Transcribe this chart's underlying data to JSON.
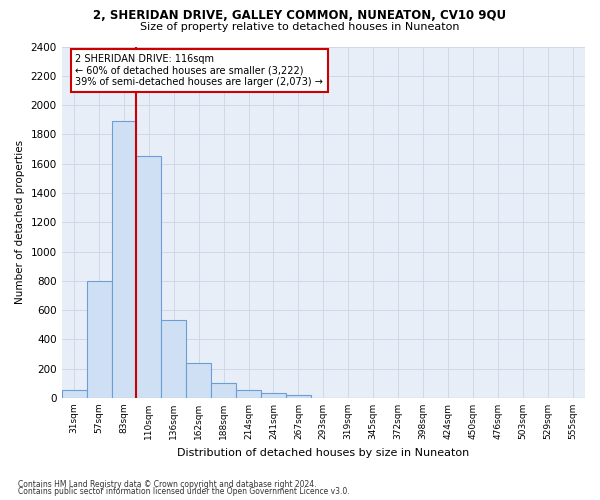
{
  "title_line1": "2, SHERIDAN DRIVE, GALLEY COMMON, NUNEATON, CV10 9QU",
  "title_line2": "Size of property relative to detached houses in Nuneaton",
  "xlabel": "Distribution of detached houses by size in Nuneaton",
  "ylabel": "Number of detached properties",
  "bar_labels": [
    "31sqm",
    "57sqm",
    "83sqm",
    "110sqm",
    "136sqm",
    "162sqm",
    "188sqm",
    "214sqm",
    "241sqm",
    "267sqm",
    "293sqm",
    "319sqm",
    "345sqm",
    "372sqm",
    "398sqm",
    "424sqm",
    "450sqm",
    "476sqm",
    "503sqm",
    "529sqm",
    "555sqm"
  ],
  "bar_values": [
    55,
    800,
    1890,
    1650,
    535,
    240,
    105,
    55,
    35,
    20,
    0,
    0,
    0,
    0,
    0,
    0,
    0,
    0,
    0,
    0,
    0
  ],
  "bar_color": "#cfe0f5",
  "bar_edge_color": "#6b9fd4",
  "vline_index": 3,
  "vline_color": "#cc0000",
  "ylim": [
    0,
    2400
  ],
  "yticks": [
    0,
    200,
    400,
    600,
    800,
    1000,
    1200,
    1400,
    1600,
    1800,
    2000,
    2200,
    2400
  ],
  "annotation_title": "2 SHERIDAN DRIVE: 116sqm",
  "annotation_line1": "← 60% of detached houses are smaller (3,222)",
  "annotation_line2": "39% of semi-detached houses are larger (2,073) →",
  "annotation_box_color": "#cc0000",
  "background_color": "#e8eef8",
  "grid_color": "#d0d8e8",
  "footnote1": "Contains HM Land Registry data © Crown copyright and database right 2024.",
  "footnote2": "Contains public sector information licensed under the Open Government Licence v3.0."
}
